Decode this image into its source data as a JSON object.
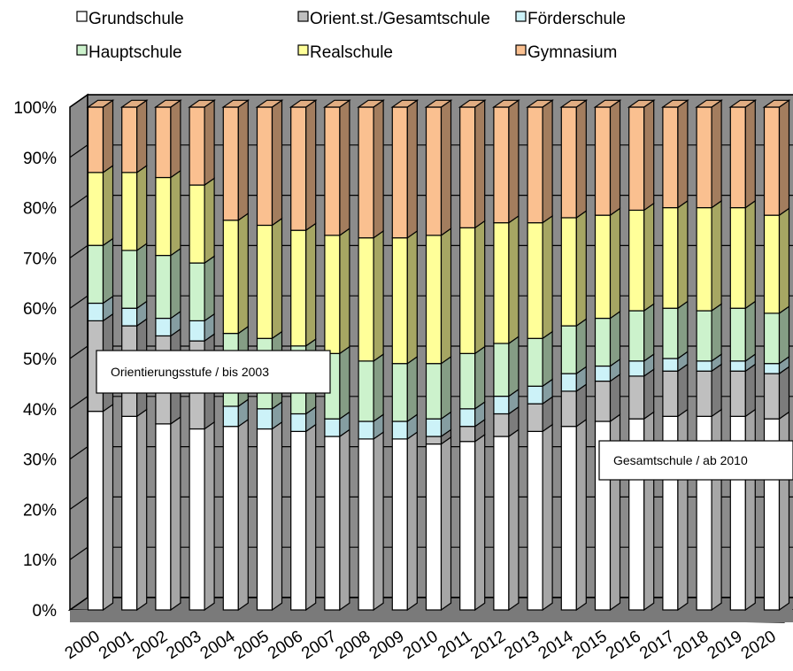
{
  "chart_data": {
    "type": "bar",
    "stacked": true,
    "percent": true,
    "three_d": true,
    "categories": [
      "2000",
      "2001",
      "2002",
      "2003",
      "2004",
      "2005",
      "2006",
      "2007",
      "2008",
      "2009",
      "2010",
      "2011",
      "2012",
      "2013",
      "2014",
      "2015",
      "2016",
      "2017",
      "2018",
      "2019",
      "2020"
    ],
    "series": [
      {
        "name": "Grundschule",
        "color": "#ffffff",
        "values": [
          39.5,
          38.5,
          37,
          36,
          36.5,
          36,
          35.5,
          34.5,
          34,
          34,
          33,
          33.5,
          34.5,
          35.5,
          36.5,
          37.5,
          38,
          38.5,
          38.5,
          38.5,
          38
        ]
      },
      {
        "name": "Orient.st./Gesamtschule",
        "color": "#bfbfbf",
        "values": [
          18,
          18,
          17.5,
          17.5,
          0,
          0,
          0,
          0,
          0,
          0,
          1.5,
          3,
          4.5,
          5.5,
          7,
          8,
          8.5,
          9,
          9,
          9,
          9
        ]
      },
      {
        "name": "Förderschule",
        "color": "#ccf2f8",
        "values": [
          3.5,
          3.5,
          3.5,
          4,
          4,
          4,
          3.5,
          3.5,
          3.5,
          3.5,
          3.5,
          3.5,
          3.5,
          3.5,
          3.5,
          3,
          3,
          2.5,
          2,
          2,
          2
        ]
      },
      {
        "name": "Hauptschule",
        "color": "#ccf2cc",
        "values": [
          11.5,
          11.5,
          12.5,
          11.5,
          14.5,
          14,
          13.5,
          13,
          12,
          11.5,
          11,
          11,
          10.5,
          9.5,
          9.5,
          9.5,
          10,
          10,
          10,
          10.5,
          10
        ]
      },
      {
        "name": "Realschule",
        "color": "#ffff99",
        "values": [
          14.5,
          15.5,
          15.5,
          15.5,
          22.5,
          22.5,
          23,
          23.5,
          24.5,
          25,
          25.5,
          25,
          24,
          23,
          21.5,
          20.5,
          20,
          20,
          20.5,
          20,
          19.5
        ]
      },
      {
        "name": "Gymnasium",
        "color": "#fac090",
        "values": [
          13,
          13,
          14,
          15.5,
          22.5,
          23.5,
          24.5,
          25.5,
          26,
          26,
          25.5,
          24,
          23,
          23,
          22,
          21.5,
          20.5,
          20,
          20,
          20,
          21.5
        ]
      }
    ],
    "ylim": [
      0,
      100
    ],
    "yticks": [
      "0%",
      "10%",
      "20%",
      "30%",
      "40%",
      "50%",
      "60%",
      "70%",
      "80%",
      "90%",
      "100%"
    ],
    "grid": true,
    "legend_position": "top",
    "annotations": [
      {
        "text": "Orientierungsstufe   / bis 2003"
      },
      {
        "text": "Gesamtschule  / ab 2010"
      }
    ]
  }
}
